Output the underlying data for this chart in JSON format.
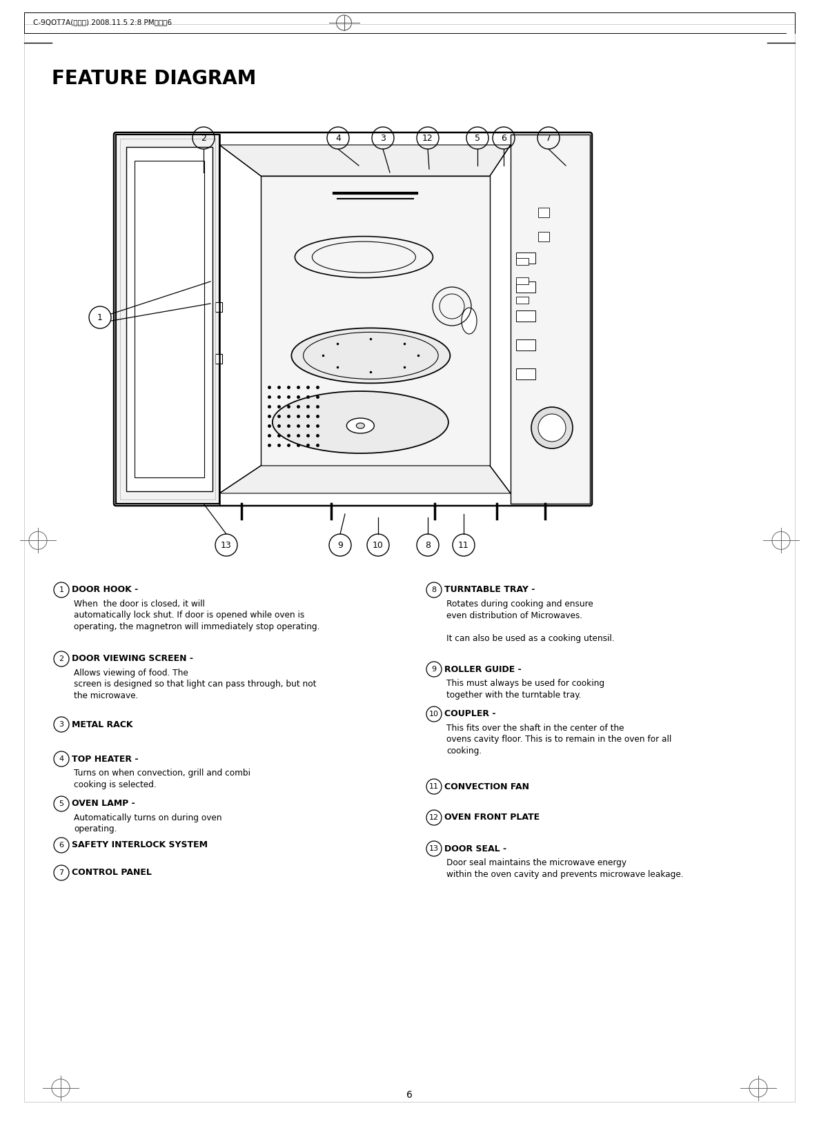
{
  "title": "FEATURE DIAGRAM",
  "page_number": "6",
  "bg_color": "#ffffff",
  "title_fontsize": 20,
  "items_left": [
    {
      "num": "1",
      "bold": "DOOR HOOK -",
      "text": " When  the door is closed, it will\nautomatically lock shut. If door is opened while oven is\noperating, the magnetron will immediately stop operating."
    },
    {
      "num": "2",
      "bold": "DOOR VIEWING SCREEN -",
      "text": " Allows viewing of food. The\nscreen is designed so that light can pass through, but not\nthe microwave."
    },
    {
      "num": "3",
      "bold": "METAL RACK",
      "text": ""
    },
    {
      "num": "4",
      "bold": "TOP HEATER -",
      "text": " Turns on when convection, grill and combi\ncooking is selected."
    },
    {
      "num": "5",
      "bold": "OVEN LAMP -",
      "text": " Automatically turns on during oven\noperating."
    },
    {
      "num": "6",
      "bold": "SAFETY INTERLOCK SYSTEM",
      "text": ""
    },
    {
      "num": "7",
      "bold": "CONTROL PANEL",
      "text": ""
    }
  ],
  "items_right": [
    {
      "num": "8",
      "bold": "TURNTABLE TRAY -",
      "text": " Rotates during cooking and ensure\neven distribution of Microwaves.\n\nIt can also be used as a cooking utensil."
    },
    {
      "num": "9",
      "bold": "ROLLER GUIDE -",
      "text": " This must always be used for cooking\ntogether with the turntable tray."
    },
    {
      "num": "10",
      "bold": "COUPLER -",
      "text": " This fits over the shaft in the center of the\novens cavity floor. This is to remain in the oven for all\ncooking."
    },
    {
      "num": "11",
      "bold": "CONVECTION FAN",
      "text": ""
    },
    {
      "num": "12",
      "bold": "OVEN FRONT PLATE",
      "text": ""
    },
    {
      "num": "13",
      "bold": "DOOR SEAL -",
      "text": " Door seal maintains the microwave energy\nwithin the oven cavity and prevents microwave leakage."
    }
  ]
}
